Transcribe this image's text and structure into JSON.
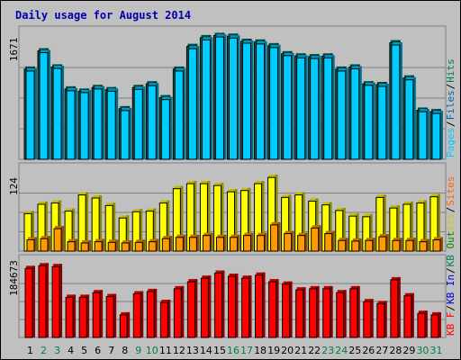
{
  "title": "Daily usage for August 2014",
  "colors": {
    "background": "#c0c0c0",
    "hits": "#00ccff",
    "files": "#00a0e0",
    "pages": "#006655",
    "visits": "#ffff00",
    "sites": "#ff9900",
    "kbytes": "#ff0000",
    "weekend_label": "#008040",
    "weekday_label": "#000000",
    "title": "#0000b0"
  },
  "chart_data": [
    {
      "type": "bar",
      "panel": "hits-files-pages",
      "ymax_label": "1671",
      "ymax": 1671,
      "side_labels": [
        {
          "text": "Pages",
          "color": "#00ccff"
        },
        {
          "text": "/",
          "color": "#000000"
        },
        {
          "text": "Files",
          "color": "#0066aa"
        },
        {
          "text": "/",
          "color": "#000000"
        },
        {
          "text": "Hits",
          "color": "#008060"
        }
      ],
      "categories": [
        "1",
        "2",
        "3",
        "4",
        "5",
        "6",
        "7",
        "8",
        "9",
        "10",
        "11",
        "12",
        "13",
        "14",
        "15",
        "16",
        "17",
        "18",
        "19",
        "20",
        "21",
        "22",
        "23",
        "24",
        "25",
        "26",
        "27",
        "28",
        "29",
        "30",
        "31"
      ],
      "series": [
        {
          "name": "Hits",
          "values": [
            1230,
            1480,
            1260,
            960,
            930,
            980,
            950,
            690,
            980,
            1030,
            840,
            1230,
            1540,
            1660,
            1690,
            1680,
            1610,
            1600,
            1550,
            1440,
            1410,
            1400,
            1410,
            1230,
            1260,
            1030,
            1020,
            1590,
            1110,
            670,
            650
          ]
        },
        {
          "name": "Files",
          "values": [
            1205,
            1455,
            1240,
            935,
            910,
            960,
            930,
            665,
            955,
            1005,
            815,
            1205,
            1510,
            1630,
            1670,
            1655,
            1585,
            1575,
            1525,
            1415,
            1385,
            1375,
            1385,
            1205,
            1235,
            1010,
            995,
            1560,
            1085,
            650,
            625
          ]
        },
        {
          "name": "Pages",
          "values": [
            1205,
            1455,
            1240,
            935,
            910,
            960,
            930,
            665,
            955,
            1005,
            815,
            1205,
            1510,
            1630,
            1670,
            1655,
            1585,
            1575,
            1525,
            1415,
            1385,
            1375,
            1385,
            1205,
            1235,
            1010,
            995,
            1560,
            1085,
            650,
            625
          ]
        }
      ]
    },
    {
      "type": "bar",
      "panel": "visits-sites",
      "ymax_label": "124",
      "ymax": 124,
      "side_labels": [
        {
          "text": "Visits",
          "color": "#cccc00"
        },
        {
          "text": "/",
          "color": "#000000"
        },
        {
          "text": "Sites",
          "color": "#ff6600"
        }
      ],
      "categories": [
        "1",
        "2",
        "3",
        "4",
        "5",
        "6",
        "7",
        "8",
        "9",
        "10",
        "11",
        "12",
        "13",
        "14",
        "15",
        "16",
        "17",
        "18",
        "19",
        "20",
        "21",
        "22",
        "23",
        "24",
        "25",
        "26",
        "27",
        "28",
        "29",
        "30",
        "31"
      ],
      "series": [
        {
          "name": "Visits",
          "values": [
            60,
            75,
            77,
            64,
            90,
            85,
            73,
            53,
            63,
            64,
            77,
            100,
            108,
            108,
            105,
            95,
            97,
            108,
            118,
            86,
            90,
            80,
            74,
            65,
            56,
            55,
            86,
            69,
            75,
            77,
            87
          ]
        },
        {
          "name": "Sites",
          "values": [
            18,
            20,
            36,
            15,
            13,
            15,
            14,
            13,
            14,
            15,
            20,
            22,
            22,
            25,
            22,
            22,
            25,
            25,
            42,
            28,
            25,
            37,
            28,
            17,
            16,
            17,
            23,
            17,
            17,
            15,
            18
          ]
        }
      ]
    },
    {
      "type": "bar",
      "panel": "kbytes",
      "ymax_label": "184673",
      "ymax": 184673,
      "side_labels": [
        {
          "text": "KB F",
          "color": "#ff0000"
        },
        {
          "text": "/",
          "color": "#000000"
        },
        {
          "text": "KB In",
          "color": "#0000cc"
        },
        {
          "text": "/",
          "color": "#000000"
        },
        {
          "text": "KB Out",
          "color": "#008060"
        }
      ],
      "categories": [
        "1",
        "2",
        "3",
        "4",
        "5",
        "6",
        "7",
        "8",
        "9",
        "10",
        "11",
        "12",
        "13",
        "14",
        "15",
        "16",
        "17",
        "18",
        "19",
        "20",
        "21",
        "22",
        "23",
        "24",
        "25",
        "26",
        "27",
        "28",
        "29",
        "30",
        "31"
      ],
      "series": [
        {
          "name": "KB F",
          "values": [
            177000,
            184000,
            182000,
            103000,
            103000,
            115000,
            105000,
            58000,
            112000,
            118000,
            90000,
            125000,
            143000,
            152000,
            165000,
            157000,
            152000,
            160000,
            143000,
            137000,
            122000,
            125000,
            125000,
            115000,
            125000,
            92000,
            87000,
            148000,
            107000,
            62000,
            58000
          ]
        }
      ]
    }
  ],
  "x_labels": {
    "days": [
      "1",
      "2",
      "3",
      "4",
      "5",
      "6",
      "7",
      "8",
      "9",
      "10",
      "11",
      "12",
      "13",
      "14",
      "15",
      "16",
      "17",
      "18",
      "19",
      "20",
      "21",
      "22",
      "23",
      "24",
      "25",
      "26",
      "27",
      "28",
      "29",
      "30",
      "31"
    ],
    "weekend": [
      2,
      3,
      9,
      10,
      16,
      17,
      23,
      24,
      30,
      31
    ]
  }
}
